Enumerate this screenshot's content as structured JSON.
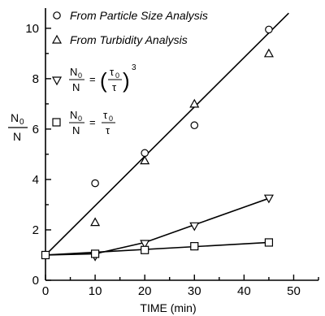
{
  "chart_data": {
    "type": "scatter",
    "xlabel": "TIME (min)",
    "ylabel": "N",
    "ylabel_numerator": "0",
    "ylabel_denominator": "N",
    "xlim": [
      0,
      55
    ],
    "ylim": [
      0,
      10.8
    ],
    "xticks": [
      0,
      10,
      20,
      30,
      40,
      50
    ],
    "yticks": [
      0,
      2,
      4,
      6,
      8,
      10
    ],
    "legend_position": "top-left",
    "series": [
      {
        "name": "From Particle Size Analysis",
        "marker": "circle",
        "x": [
          0,
          10,
          20,
          30,
          45
        ],
        "y": [
          1.0,
          3.85,
          5.05,
          6.15,
          9.95
        ]
      },
      {
        "name": "From Turbidity Analysis",
        "marker": "triangle-up",
        "x": [
          10,
          20,
          30,
          45
        ],
        "y": [
          2.3,
          4.75,
          7.0,
          9.0
        ]
      },
      {
        "name": "N0/N = (τ0/τ)^3",
        "marker": "triangle-down",
        "x": [
          10,
          20,
          30,
          45
        ],
        "y": [
          0.95,
          1.45,
          2.15,
          3.25
        ]
      },
      {
        "name": "N0/N = τ0/τ",
        "marker": "square",
        "x": [
          0,
          10,
          20,
          30,
          45
        ],
        "y": [
          1.0,
          1.05,
          1.2,
          1.35,
          1.5
        ]
      }
    ],
    "fit_lines": [
      {
        "points": [
          [
            0,
            1.0
          ],
          [
            49,
            10.6
          ]
        ]
      },
      {
        "points": [
          [
            0,
            1.0
          ],
          [
            10,
            1.05
          ],
          [
            20,
            1.5
          ],
          [
            30,
            2.2
          ],
          [
            45,
            3.25
          ]
        ]
      },
      {
        "points": [
          [
            0,
            1.0
          ],
          [
            45,
            1.5
          ]
        ]
      }
    ],
    "legend_labels": {
      "circle": "From Particle Size Analysis",
      "triangle": "From Turbidity Analysis",
      "formula_cubed": {
        "N0": "N",
        "N0_sub": "0",
        "N": "N",
        "tau0": "τ",
        "tau0_sub": "0",
        "tau": "τ",
        "exp": "3"
      },
      "formula_linear": {
        "N0": "N",
        "N0_sub": "0",
        "N": "N",
        "tau0": "τ",
        "tau0_sub": "0",
        "tau": "τ"
      }
    }
  }
}
